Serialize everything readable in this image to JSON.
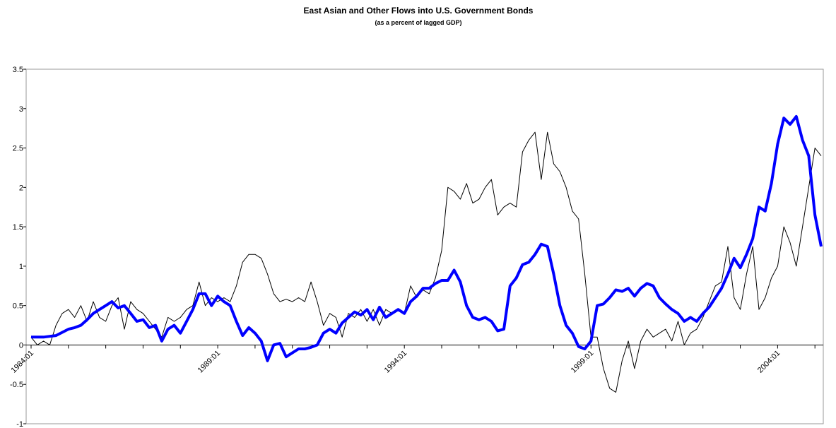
{
  "chart_data": {
    "type": "line",
    "title": "East Asian and Other Flows into U.S. Government Bonds",
    "subtitle": "(as a percent of lagged GDP)",
    "categories": [
      "1984:01",
      null,
      null,
      null,
      null,
      null,
      null,
      null,
      null,
      null,
      null,
      null,
      null,
      null,
      null,
      null,
      null,
      null,
      null,
      null,
      null,
      null,
      null,
      null,
      null,
      null,
      null,
      null,
      null,
      null,
      "1989:01",
      null,
      null,
      null,
      null,
      null,
      null,
      null,
      null,
      null,
      null,
      null,
      null,
      null,
      null,
      null,
      null,
      null,
      null,
      null,
      null,
      null,
      null,
      null,
      null,
      null,
      null,
      null,
      null,
      null,
      "1994:01",
      null,
      null,
      null,
      null,
      null,
      null,
      null,
      null,
      null,
      null,
      null,
      null,
      null,
      null,
      null,
      null,
      null,
      null,
      null,
      null,
      null,
      null,
      null,
      null,
      null,
      null,
      null,
      null,
      null,
      "1999:01",
      null,
      null,
      null,
      null,
      null,
      null,
      null,
      null,
      null,
      null,
      null,
      null,
      null,
      null,
      null,
      null,
      null,
      null,
      null,
      null,
      null,
      null,
      null,
      null,
      null,
      null,
      null,
      null,
      null,
      "2004:01",
      null,
      null,
      null,
      null,
      null,
      null,
      null
    ],
    "series": [
      {
        "color": "#000000",
        "values": [
          0.1,
          0.0,
          0.05,
          0.0,
          0.25,
          0.4,
          0.45,
          0.35,
          0.5,
          0.3,
          0.55,
          0.35,
          0.3,
          0.5,
          0.6,
          0.2,
          0.55,
          0.45,
          0.4,
          0.3,
          0.2,
          0.1,
          0.35,
          0.3,
          0.35,
          0.45,
          0.5,
          0.8,
          0.5,
          0.6,
          0.55,
          0.6,
          0.55,
          0.75,
          1.05,
          1.15,
          1.15,
          1.1,
          0.9,
          0.65,
          0.55,
          0.58,
          0.55,
          0.6,
          0.55,
          0.8,
          0.55,
          0.25,
          0.4,
          0.35,
          0.1,
          0.4,
          0.35,
          0.45,
          0.3,
          0.45,
          0.25,
          0.45,
          0.4,
          0.45,
          0.4,
          0.75,
          0.6,
          0.7,
          0.65,
          0.85,
          1.2,
          2.0,
          1.95,
          1.85,
          2.05,
          1.8,
          1.85,
          2.0,
          2.1,
          1.65,
          1.75,
          1.8,
          1.75,
          2.45,
          2.6,
          2.7,
          2.1,
          2.7,
          2.3,
          2.2,
          2.0,
          1.7,
          1.6,
          0.9,
          0.1,
          0.1,
          -0.3,
          -0.55,
          -0.6,
          -0.2,
          0.05,
          -0.3,
          0.05,
          0.2,
          0.1,
          0.15,
          0.2,
          0.05,
          0.3,
          0.0,
          0.15,
          0.2,
          0.35,
          0.55,
          0.75,
          0.8,
          1.25,
          0.6,
          0.45,
          0.9,
          1.25,
          0.45,
          0.6,
          0.85,
          1.0,
          1.5,
          1.3,
          1.0,
          1.5,
          2.0,
          2.5,
          2.4
        ]
      },
      {
        "color": "#0000ff",
        "values": [
          0.1,
          0.1,
          0.1,
          0.11,
          0.12,
          0.16,
          0.2,
          0.22,
          0.25,
          0.32,
          0.4,
          0.45,
          0.5,
          0.55,
          0.47,
          0.5,
          0.4,
          0.3,
          0.32,
          0.22,
          0.25,
          0.05,
          0.2,
          0.25,
          0.15,
          0.3,
          0.45,
          0.65,
          0.65,
          0.5,
          0.62,
          0.55,
          0.5,
          0.3,
          0.12,
          0.22,
          0.15,
          0.05,
          -0.2,
          0.0,
          0.02,
          -0.15,
          -0.1,
          -0.05,
          -0.05,
          -0.03,
          0.0,
          0.15,
          0.2,
          0.15,
          0.28,
          0.35,
          0.42,
          0.38,
          0.45,
          0.32,
          0.48,
          0.35,
          0.4,
          0.45,
          0.4,
          0.55,
          0.62,
          0.72,
          0.72,
          0.78,
          0.82,
          0.82,
          0.95,
          0.8,
          0.5,
          0.35,
          0.32,
          0.35,
          0.3,
          0.18,
          0.2,
          0.75,
          0.85,
          1.02,
          1.05,
          1.15,
          1.28,
          1.25,
          0.9,
          0.5,
          0.25,
          0.15,
          -0.02,
          -0.05,
          0.05,
          0.5,
          0.52,
          0.6,
          0.7,
          0.68,
          0.72,
          0.62,
          0.72,
          0.78,
          0.75,
          0.6,
          0.52,
          0.45,
          0.4,
          0.3,
          0.35,
          0.3,
          0.4,
          0.48,
          0.6,
          0.72,
          0.9,
          1.1,
          0.98,
          1.15,
          1.35,
          1.75,
          1.7,
          2.05,
          2.55,
          2.88,
          2.8,
          2.9,
          2.6,
          2.4,
          1.65,
          1.25
        ]
      }
    ],
    "ylim": [
      -1,
      3.5
    ],
    "yticks": [
      -1,
      -0.5,
      0,
      0.5,
      1,
      1.5,
      2,
      2.5,
      3,
      3.5
    ],
    "grid": false
  }
}
